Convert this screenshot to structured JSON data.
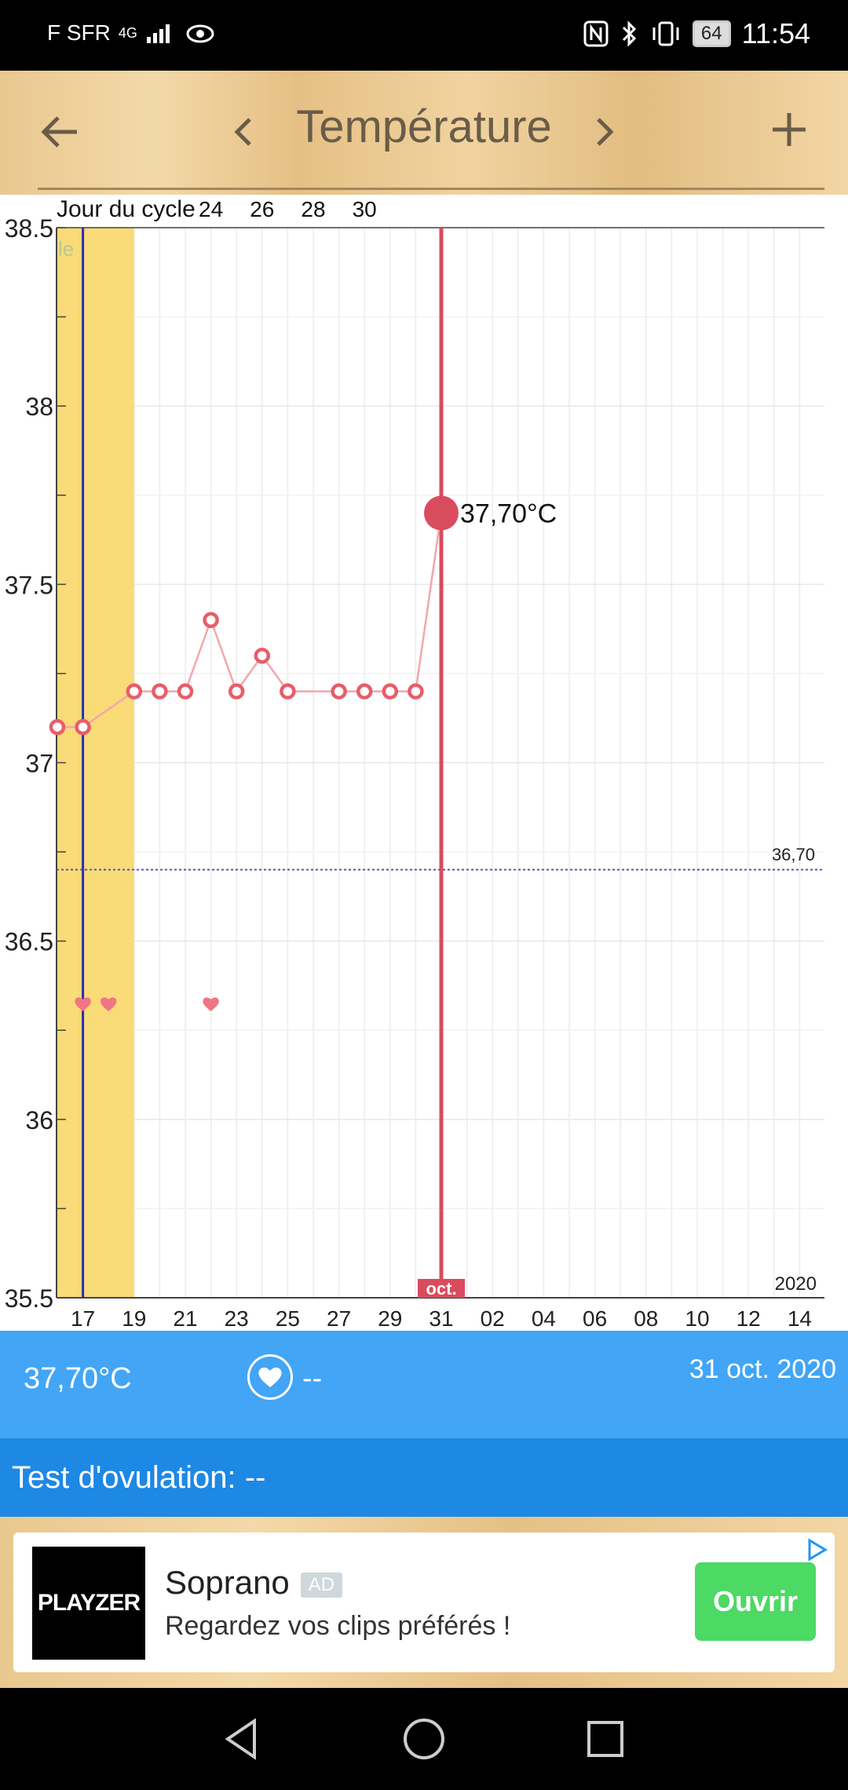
{
  "status_bar": {
    "carrier": "F SFR",
    "network": "4G",
    "battery": "64",
    "time": "11:54"
  },
  "app_bar": {
    "title": "Température",
    "back_icon": "arrow-left-icon",
    "prev_icon": "chevron-left-icon",
    "next_icon": "chevron-right-icon",
    "add_icon": "plus-icon"
  },
  "chart_data": {
    "type": "line",
    "title": "",
    "cycle_label": "Jour du cycle",
    "cycle_ticks": [
      "24",
      "26",
      "28",
      "30"
    ],
    "x_tick_labels": [
      "17",
      "19",
      "21",
      "23",
      "25",
      "27",
      "29",
      "31",
      "02",
      "04",
      "06",
      "08",
      "10",
      "12",
      "14"
    ],
    "y_tick_labels": [
      "38.5",
      "38",
      "37.5",
      "37",
      "36.5",
      "36",
      "35.5"
    ],
    "ylim": [
      35.5,
      38.5
    ],
    "grid": true,
    "series": [
      {
        "x": [
          "16 oct.",
          "17 oct.",
          "19 oct.",
          "20 oct.",
          "21 oct.",
          "22 oct.",
          "23 oct.",
          "24 oct.",
          "25 oct.",
          "27 oct.",
          "28 oct.",
          "29 oct.",
          "30 oct.",
          "31 oct."
        ],
        "y": [
          37.1,
          37.1,
          37.2,
          37.2,
          37.2,
          37.4,
          37.2,
          37.3,
          37.2,
          37.2,
          37.2,
          37.2,
          37.2,
          37.7
        ]
      }
    ],
    "highlight_point": {
      "x": "31 oct.",
      "y": 37.7,
      "label": "37,70°C"
    },
    "reference_line": {
      "y": 36.7,
      "label": "36,70"
    },
    "period_band": {
      "from": "16 oct.",
      "to": "19 oct.",
      "partial_label": "le"
    },
    "hearts": [
      "17 oct.",
      "18 oct.",
      "22 oct."
    ],
    "month_label": "oct.",
    "year_label": "2020",
    "colors": {
      "series": "#e85d6a",
      "selected_line": "#d94c5d",
      "band": "#f9db78",
      "today_line": "#2b2bb5",
      "reference": "#5b55a8"
    }
  },
  "info_bar": {
    "temperature": "37,70°C",
    "heart_icon": "heart-icon",
    "heart_value": "--",
    "date": "31 oct. 2020"
  },
  "ovulation": {
    "label": "Test d'ovulation: --"
  },
  "ad": {
    "logo_text": "PLAYZER",
    "title": "Soprano",
    "badge": "AD",
    "subtitle": "Regardez vos clips préférés !",
    "button": "Ouvrir",
    "colors": {
      "button": "#4cd964"
    }
  },
  "colors": {
    "info_bar": "#42a5f5",
    "ovulation_bar": "#1e88e5"
  }
}
